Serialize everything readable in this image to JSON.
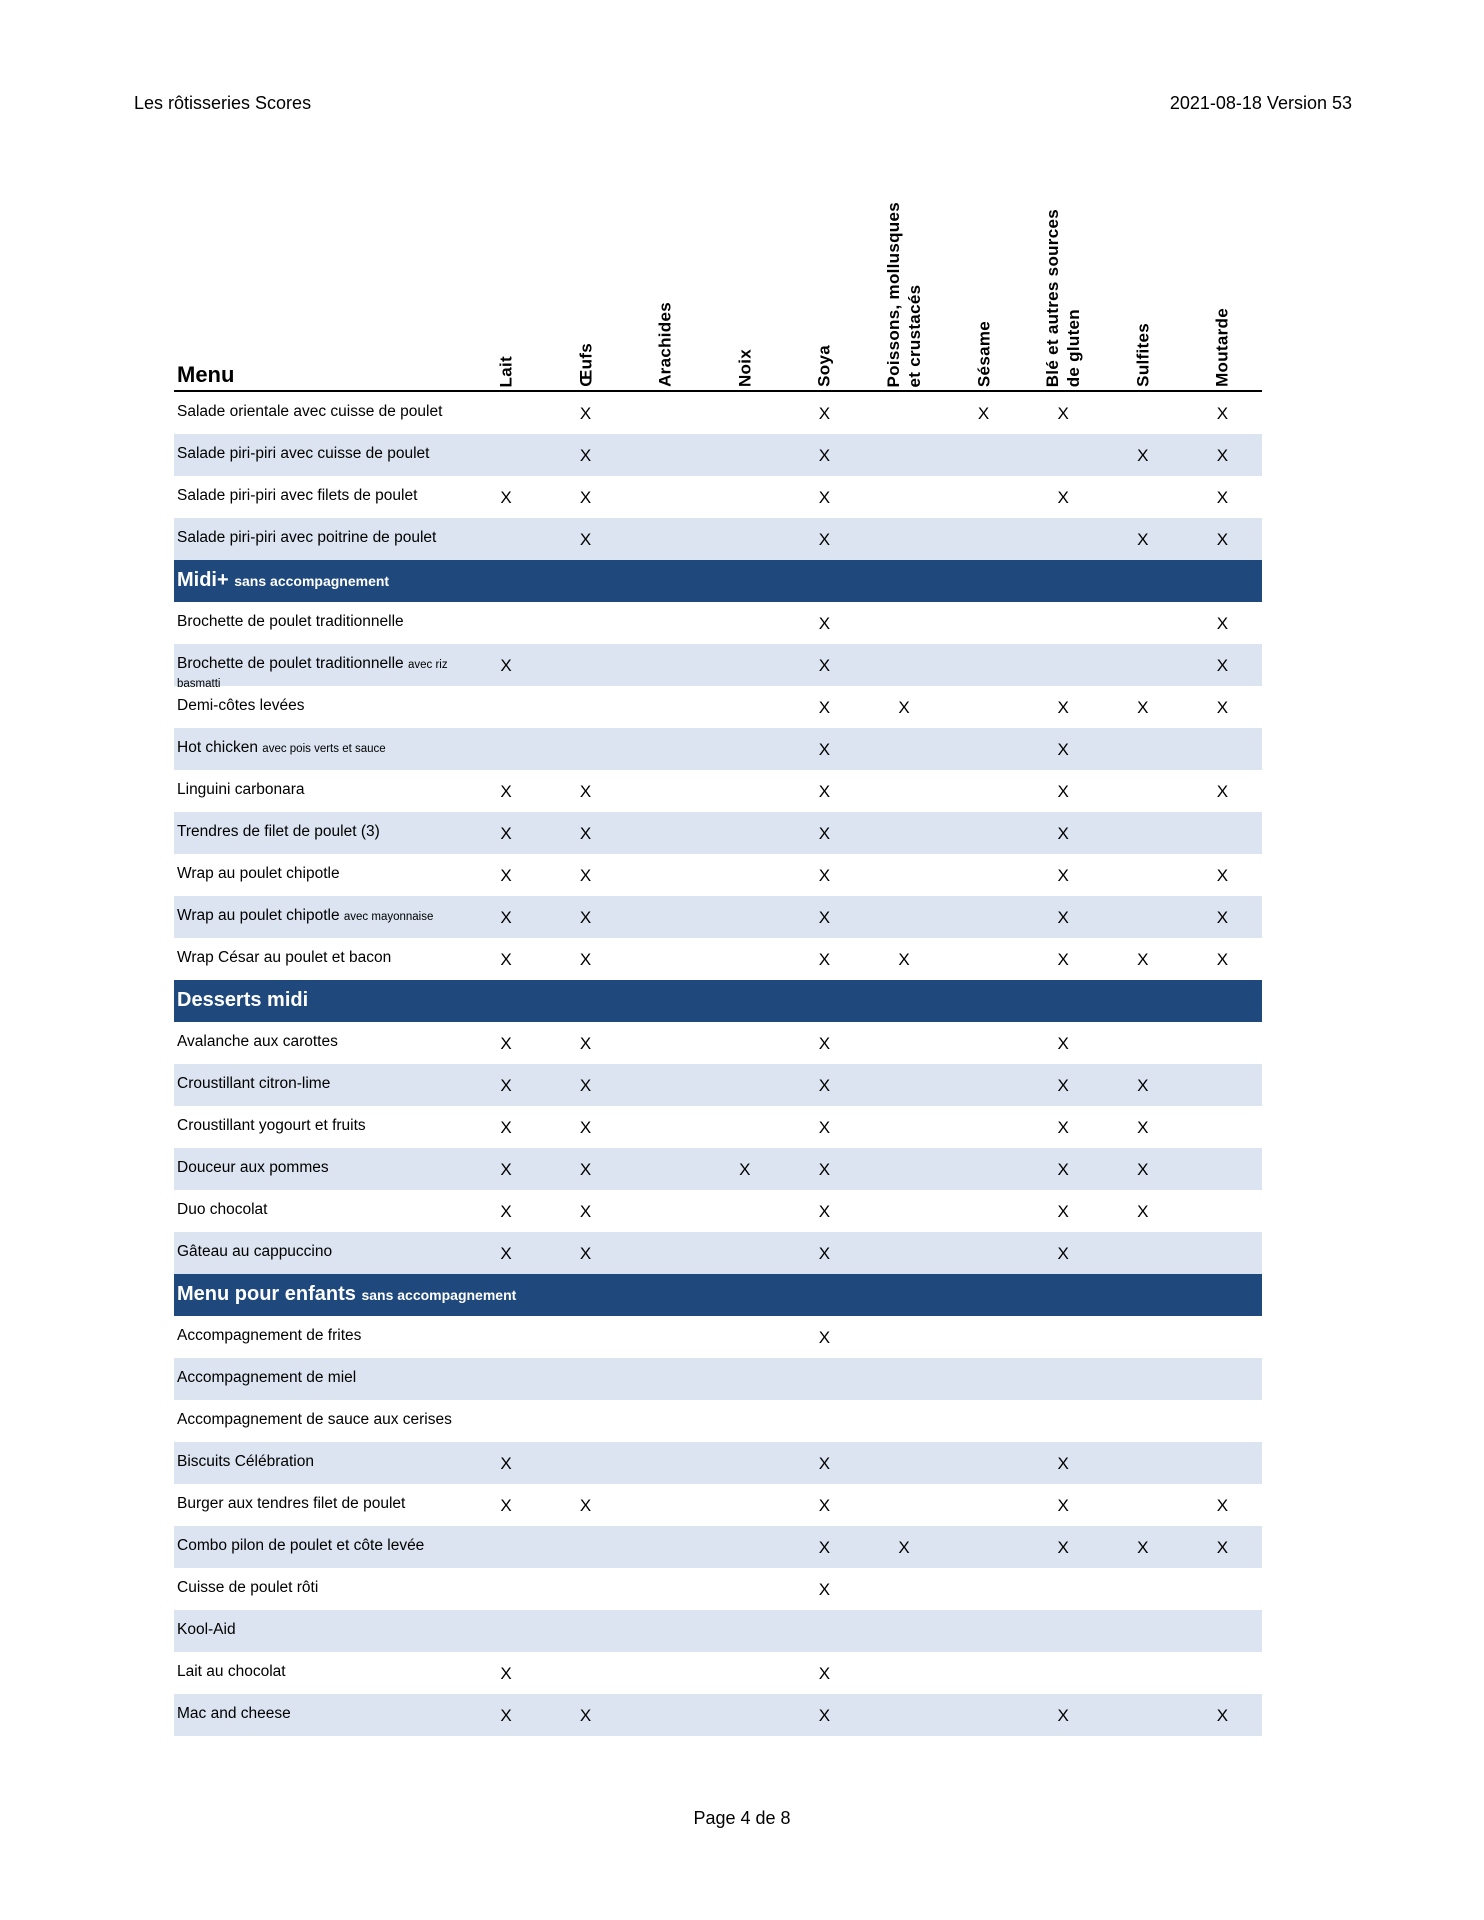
{
  "header": {
    "title": "Les rôtisseries Scores",
    "version": "2021-08-18 Version 53"
  },
  "footer": {
    "page": "Page 4 de 8"
  },
  "table": {
    "menu_label": "Menu",
    "columns": [
      [
        "Lait"
      ],
      [
        "Œufs"
      ],
      [
        "Arachides"
      ],
      [
        "Noix"
      ],
      [
        "Soya"
      ],
      [
        "Poissons, mollusques",
        "et crustacés"
      ],
      [
        "Sésame"
      ],
      [
        "Blé et autres sources",
        "de gluten"
      ],
      [
        "Sulfites"
      ],
      [
        "Moutarde"
      ]
    ],
    "mark": "X",
    "sections": [
      {
        "title": "",
        "subtitle": "",
        "items": [
          {
            "name": "Salade orientale avec cuisse de poulet",
            "note": "",
            "marks": [
              0,
              1,
              0,
              0,
              1,
              0,
              1,
              1,
              0,
              1
            ]
          },
          {
            "name": "Salade piri-piri avec cuisse de poulet",
            "note": "",
            "marks": [
              0,
              1,
              0,
              0,
              1,
              0,
              0,
              0,
              1,
              1
            ]
          },
          {
            "name": "Salade piri-piri avec filets de poulet",
            "note": "",
            "marks": [
              1,
              1,
              0,
              0,
              1,
              0,
              0,
              1,
              0,
              1
            ]
          },
          {
            "name": "Salade piri-piri avec poitrine de poulet",
            "note": "",
            "marks": [
              0,
              1,
              0,
              0,
              1,
              0,
              0,
              0,
              1,
              1
            ]
          }
        ]
      },
      {
        "title": "Midi+",
        "subtitle": "sans accompagnement",
        "items": [
          {
            "name": "Brochette de poulet traditionnelle",
            "note": "",
            "marks": [
              0,
              0,
              0,
              0,
              1,
              0,
              0,
              0,
              0,
              1
            ]
          },
          {
            "name": "Brochette de poulet traditionnelle",
            "note": "avec riz basmatti",
            "marks": [
              1,
              0,
              0,
              0,
              1,
              0,
              0,
              0,
              0,
              1
            ]
          },
          {
            "name": "Demi-côtes levées",
            "note": "",
            "marks": [
              0,
              0,
              0,
              0,
              1,
              1,
              0,
              1,
              1,
              1
            ]
          },
          {
            "name": "Hot chicken",
            "note": "avec pois verts et sauce",
            "marks": [
              0,
              0,
              0,
              0,
              1,
              0,
              0,
              1,
              0,
              0
            ]
          },
          {
            "name": "Linguini carbonara",
            "note": "",
            "marks": [
              1,
              1,
              0,
              0,
              1,
              0,
              0,
              1,
              0,
              1
            ]
          },
          {
            "name": "Trendres de filet de poulet (3)",
            "note": "",
            "marks": [
              1,
              1,
              0,
              0,
              1,
              0,
              0,
              1,
              0,
              0
            ]
          },
          {
            "name": "Wrap au poulet chipotle",
            "note": "",
            "marks": [
              1,
              1,
              0,
              0,
              1,
              0,
              0,
              1,
              0,
              1
            ]
          },
          {
            "name": "Wrap au poulet chipotle",
            "note": "avec mayonnaise",
            "marks": [
              1,
              1,
              0,
              0,
              1,
              0,
              0,
              1,
              0,
              1
            ]
          },
          {
            "name": "Wrap César au poulet et bacon",
            "note": "",
            "marks": [
              1,
              1,
              0,
              0,
              1,
              1,
              0,
              1,
              1,
              1
            ]
          }
        ]
      },
      {
        "title": "Desserts midi",
        "subtitle": "",
        "items": [
          {
            "name": "Avalanche aux carottes",
            "note": "",
            "marks": [
              1,
              1,
              0,
              0,
              1,
              0,
              0,
              1,
              0,
              0
            ]
          },
          {
            "name": "Croustillant citron-lime",
            "note": "",
            "marks": [
              1,
              1,
              0,
              0,
              1,
              0,
              0,
              1,
              1,
              0
            ]
          },
          {
            "name": "Croustillant yogourt et fruits",
            "note": "",
            "marks": [
              1,
              1,
              0,
              0,
              1,
              0,
              0,
              1,
              1,
              0
            ]
          },
          {
            "name": "Douceur aux pommes",
            "note": "",
            "marks": [
              1,
              1,
              0,
              1,
              1,
              0,
              0,
              1,
              1,
              0
            ]
          },
          {
            "name": "Duo chocolat",
            "note": "",
            "marks": [
              1,
              1,
              0,
              0,
              1,
              0,
              0,
              1,
              1,
              0
            ]
          },
          {
            "name": "Gâteau au cappuccino",
            "note": "",
            "marks": [
              1,
              1,
              0,
              0,
              1,
              0,
              0,
              1,
              0,
              0
            ]
          }
        ]
      },
      {
        "title": "Menu pour enfants",
        "subtitle": "sans accompagnement",
        "items": [
          {
            "name": "Accompagnement de frites",
            "note": "",
            "marks": [
              0,
              0,
              0,
              0,
              1,
              0,
              0,
              0,
              0,
              0
            ]
          },
          {
            "name": "Accompagnement de miel",
            "note": "",
            "marks": [
              0,
              0,
              0,
              0,
              0,
              0,
              0,
              0,
              0,
              0
            ]
          },
          {
            "name": "Accompagnement de sauce aux cerises",
            "note": "",
            "marks": [
              0,
              0,
              0,
              0,
              0,
              0,
              0,
              0,
              0,
              0
            ]
          },
          {
            "name": "Biscuits Célébration",
            "note": "",
            "marks": [
              1,
              0,
              0,
              0,
              1,
              0,
              0,
              1,
              0,
              0
            ]
          },
          {
            "name": "Burger aux tendres filet de poulet",
            "note": "",
            "marks": [
              1,
              1,
              0,
              0,
              1,
              0,
              0,
              1,
              0,
              1
            ]
          },
          {
            "name": "Combo pilon de poulet et côte levée",
            "note": "",
            "marks": [
              0,
              0,
              0,
              0,
              1,
              1,
              0,
              1,
              1,
              1
            ]
          },
          {
            "name": "Cuisse de poulet rôti",
            "note": "",
            "marks": [
              0,
              0,
              0,
              0,
              1,
              0,
              0,
              0,
              0,
              0
            ]
          },
          {
            "name": "Kool-Aid",
            "note": "",
            "marks": [
              0,
              0,
              0,
              0,
              0,
              0,
              0,
              0,
              0,
              0
            ]
          },
          {
            "name": "Lait au chocolat",
            "note": "",
            "marks": [
              1,
              0,
              0,
              0,
              1,
              0,
              0,
              0,
              0,
              0
            ]
          },
          {
            "name": "Mac and cheese",
            "note": "",
            "marks": [
              1,
              1,
              0,
              0,
              1,
              0,
              0,
              1,
              0,
              1
            ]
          }
        ]
      }
    ]
  },
  "colors": {
    "section_band": "#1f497d",
    "stripe": "#dbe4f0"
  }
}
